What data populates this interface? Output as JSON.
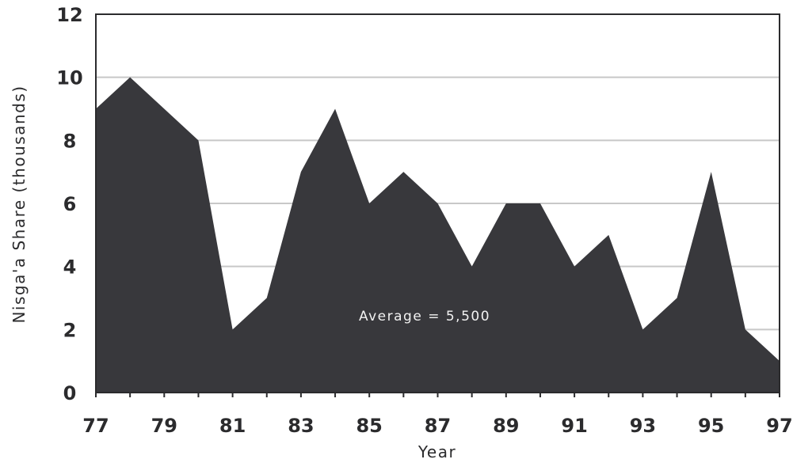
{
  "chart_data": {
    "type": "area",
    "xlabel": "Year",
    "ylabel": "Nisga'a Share (thousands)",
    "x": [
      77,
      78,
      79,
      80,
      81,
      82,
      83,
      84,
      85,
      86,
      87,
      88,
      89,
      90,
      91,
      92,
      93,
      94,
      95,
      96,
      97
    ],
    "y": [
      9,
      10,
      9,
      8,
      2,
      3,
      7,
      9,
      6,
      7,
      6,
      4,
      6,
      6,
      4,
      5,
      2,
      3,
      7,
      2,
      1
    ],
    "xlim": [
      77,
      97
    ],
    "ylim": [
      0,
      12
    ],
    "x_ticks": [
      "77",
      "79",
      "81",
      "83",
      "85",
      "87",
      "89",
      "91",
      "93",
      "95",
      "97"
    ],
    "y_ticks": [
      "0",
      "2",
      "4",
      "6",
      "8",
      "10",
      "12"
    ],
    "annotation": "Average = 5,500",
    "grid": true,
    "colors": {
      "fill": "#38383c",
      "grid": "#c8c8c8",
      "axis": "#2b2b2d",
      "text": "#2b2b2d",
      "annotation_text": "#f2f2f2"
    }
  }
}
